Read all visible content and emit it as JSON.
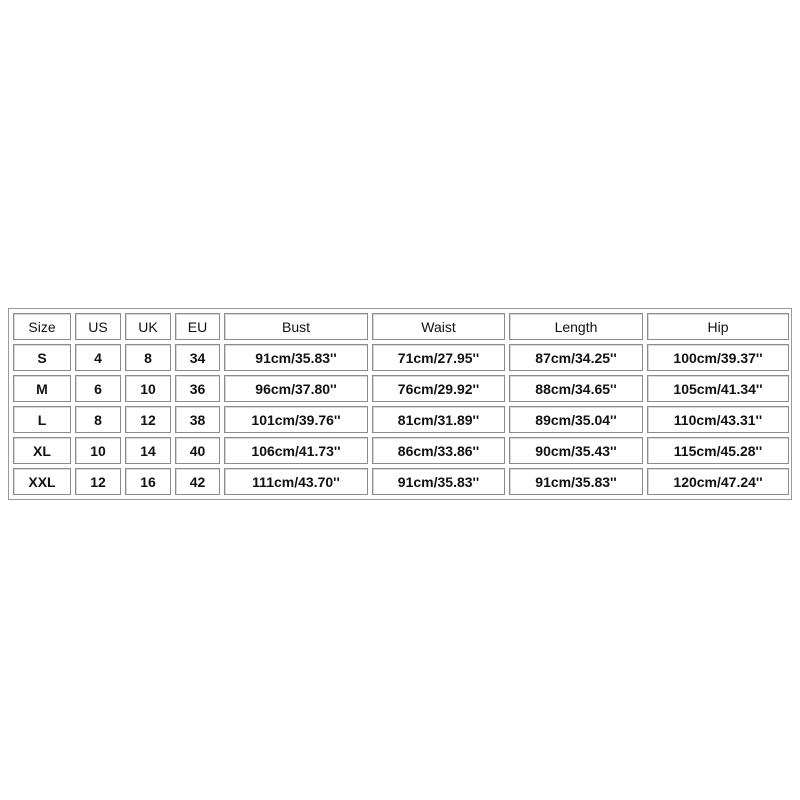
{
  "table": {
    "header": [
      "Size",
      "US",
      "UK",
      "EU",
      "Bust",
      "Waist",
      "Length",
      "Hip"
    ],
    "rows": [
      [
        "S",
        "4",
        "8",
        "34",
        "91cm/35.83''",
        "71cm/27.95''",
        "87cm/34.25''",
        "100cm/39.37''"
      ],
      [
        "M",
        "6",
        "10",
        "36",
        "96cm/37.80''",
        "76cm/29.92''",
        "88cm/34.65''",
        "105cm/41.34''"
      ],
      [
        "L",
        "8",
        "12",
        "38",
        "101cm/39.76''",
        "81cm/31.89''",
        "89cm/35.04''",
        "110cm/43.31''"
      ],
      [
        "XL",
        "10",
        "14",
        "40",
        "106cm/41.73''",
        "86cm/33.86''",
        "90cm/35.43''",
        "115cm/45.28''"
      ],
      [
        "XXL",
        "12",
        "16",
        "42",
        "111cm/43.70''",
        "91cm/35.83''",
        "91cm/35.83''",
        "120cm/47.24''"
      ]
    ]
  }
}
